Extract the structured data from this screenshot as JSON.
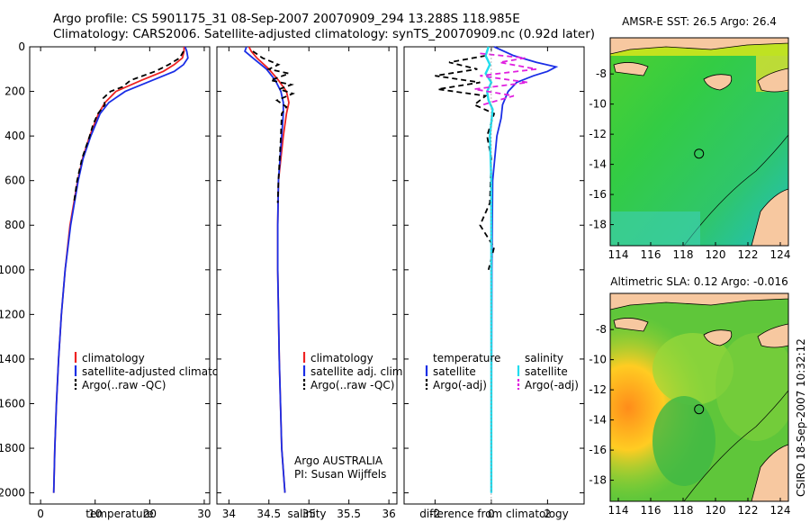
{
  "header": {
    "line1": "Argo profile: CS 5901175_31 08-Sep-2007 20070909_294 13.288S 118.985E",
    "line2": "Climatology: CARS2006. Satellite-adjusted climatology: synTS_20070909.nc (0.92d later)"
  },
  "footer_stamp": "CSIRO 18-Sep-2007 10:32:12",
  "colors": {
    "climatology": "#ee2222",
    "satellite": "#1a2ee6",
    "argo": "#000000",
    "salinity_sat": "#22ddee",
    "salinity_argo": "#e020e0"
  },
  "chart_data": [
    {
      "type": "line",
      "name": "temperature",
      "xlabel": "temperature",
      "xlim": [
        -2,
        31
      ],
      "ylim": [
        2050,
        0
      ],
      "xticks": [
        0,
        10,
        20,
        30
      ],
      "yticks": [
        0,
        200,
        400,
        600,
        800,
        1000,
        1200,
        1400,
        1600,
        1800,
        2000
      ],
      "legend": [
        "climatology",
        "satellite-adjusted climatology",
        "Argo(..raw -QC)"
      ],
      "series": [
        {
          "name": "climatology",
          "depth": [
            0,
            20,
            50,
            80,
            110,
            150,
            200,
            250,
            300,
            400,
            500,
            600,
            800,
            1000,
            1200,
            1400,
            1600,
            1800,
            2000
          ],
          "values": [
            26.3,
            26.3,
            26.0,
            24.5,
            22.5,
            18.5,
            13.8,
            11.8,
            10.6,
            9.0,
            7.7,
            6.8,
            5.4,
            4.5,
            3.8,
            3.3,
            2.9,
            2.6,
            2.4
          ]
        },
        {
          "name": "satellite-adjusted climatology",
          "depth": [
            0,
            20,
            50,
            80,
            110,
            150,
            200,
            250,
            300,
            400,
            500,
            600,
            800,
            1000,
            1200,
            1400,
            1600,
            1800,
            2000
          ],
          "values": [
            26.5,
            26.8,
            27.0,
            26.2,
            24.5,
            20.5,
            15.5,
            12.5,
            10.9,
            9.2,
            7.8,
            6.9,
            5.5,
            4.5,
            3.8,
            3.3,
            2.9,
            2.6,
            2.4
          ]
        },
        {
          "name": "Argo(..raw -QC)",
          "depth": [
            20,
            50,
            80,
            110,
            150,
            180,
            200,
            230,
            260,
            300,
            350,
            400,
            500,
            600,
            700
          ],
          "values": [
            26.2,
            25.5,
            23.5,
            21.0,
            16.5,
            15.0,
            12.8,
            11.5,
            11.8,
            10.5,
            9.6,
            9.0,
            7.6,
            6.7,
            6.1
          ]
        }
      ]
    },
    {
      "type": "line",
      "name": "salinity",
      "xlabel": "salinity",
      "xlim": [
        33.85,
        36.1
      ],
      "ylim": [
        2050,
        0
      ],
      "xticks": [
        34,
        34.5,
        35,
        35.5,
        36
      ],
      "legend": [
        "climatology",
        "satellite adj. clim.",
        "Argo(..raw -QC)"
      ],
      "annotation": [
        "Argo AUSTRALIA",
        "PI: Susan Wijffels"
      ],
      "series": [
        {
          "name": "climatology",
          "depth": [
            0,
            20,
            50,
            100,
            150,
            200,
            250,
            300,
            400,
            600,
            800,
            1000,
            1400,
            1800,
            2000
          ],
          "values": [
            34.25,
            34.28,
            34.35,
            34.5,
            34.62,
            34.72,
            34.75,
            34.72,
            34.68,
            34.62,
            34.61,
            34.61,
            34.63,
            34.66,
            34.7
          ]
        },
        {
          "name": "satellite adj. clim.",
          "depth": [
            0,
            20,
            50,
            100,
            150,
            200,
            250,
            300,
            400,
            600,
            800,
            1000,
            1400,
            1800,
            2000
          ],
          "values": [
            34.22,
            34.2,
            34.3,
            34.47,
            34.58,
            34.65,
            34.68,
            34.68,
            34.66,
            34.62,
            34.61,
            34.61,
            34.63,
            34.66,
            34.7
          ]
        },
        {
          "name": "Argo(..raw -QC)",
          "depth": [
            20,
            50,
            80,
            100,
            120,
            150,
            170,
            190,
            210,
            240,
            270,
            300,
            400,
            600,
            700
          ],
          "values": [
            34.3,
            34.42,
            34.62,
            34.5,
            34.75,
            34.52,
            34.78,
            34.63,
            34.8,
            34.6,
            34.72,
            34.66,
            34.65,
            34.62,
            34.61
          ]
        }
      ]
    },
    {
      "type": "line",
      "name": "difference from climatology",
      "xlabel": "difference from climatology",
      "xlim": [
        -3.1,
        3.3
      ],
      "ylim": [
        2050,
        0
      ],
      "xticks": [
        -2,
        0,
        2
      ],
      "legend_temperature_header": "temperature",
      "legend_salinity_header": "salinity",
      "legend": [
        "satellite",
        "Argo(-adj)",
        "satellite",
        "Argo(-adj)"
      ],
      "series": [
        {
          "name": "temperature satellite",
          "depth": [
            0,
            40,
            70,
            90,
            110,
            130,
            160,
            200,
            260,
            320,
            400,
            600,
            1000,
            1400,
            2000
          ],
          "values": [
            0.1,
            0.8,
            1.6,
            2.3,
            2.0,
            1.5,
            0.9,
            0.6,
            0.4,
            0.35,
            0.2,
            0.05,
            0.02,
            0.01,
            0.0
          ]
        },
        {
          "name": "temperature Argo(-adj)",
          "depth": [
            40,
            70,
            100,
            130,
            160,
            190,
            220,
            260,
            300,
            400,
            500,
            700,
            800,
            900,
            1000
          ],
          "values": [
            -0.2,
            -1.5,
            -0.5,
            -2.0,
            -0.4,
            -1.9,
            -0.2,
            -0.6,
            0.1,
            -0.15,
            0.0,
            -0.05,
            -0.4,
            0.1,
            -0.1
          ]
        },
        {
          "name": "salinity satellite",
          "depth": [
            0,
            40,
            80,
            120,
            160,
            200,
            240,
            280,
            340,
            400,
            600,
            1000,
            1400,
            2000
          ],
          "values": [
            -0.1,
            -0.2,
            -0.05,
            -0.2,
            0.0,
            -0.15,
            -0.1,
            0.05,
            0.0,
            -0.05,
            0.0,
            0.0,
            0.0,
            0.0
          ]
        },
        {
          "name": "salinity Argo(-adj)",
          "depth": [
            30,
            50,
            70,
            100,
            130,
            160,
            190,
            220,
            260
          ],
          "values": [
            -0.4,
            1.2,
            0.3,
            1.6,
            -0.4,
            1.3,
            -0.6,
            0.8,
            -0.3
          ]
        }
      ]
    },
    {
      "type": "heatmap",
      "name": "AMSR-E SST map",
      "title": "AMSR-E SST: 26.5 Argo: 26.4",
      "xticks": [
        114,
        116,
        118,
        120,
        122,
        124
      ],
      "yticks": [
        -8,
        -10,
        -12,
        -14,
        -16,
        -18
      ],
      "xlim": [
        113.5,
        124.5
      ],
      "ylim": [
        -19.4,
        -5.6
      ],
      "float_position": [
        118.985,
        -13.288
      ]
    },
    {
      "type": "heatmap",
      "name": "Altimetric SLA map",
      "title": "Altimetric SLA: 0.12 Argo: -0.016",
      "xticks": [
        114,
        116,
        118,
        120,
        122,
        124
      ],
      "yticks": [
        -8,
        -10,
        -12,
        -14,
        -16,
        -18
      ],
      "xlim": [
        113.5,
        124.5
      ],
      "ylim": [
        -19.4,
        -5.6
      ],
      "float_position": [
        118.985,
        -13.288
      ]
    }
  ]
}
